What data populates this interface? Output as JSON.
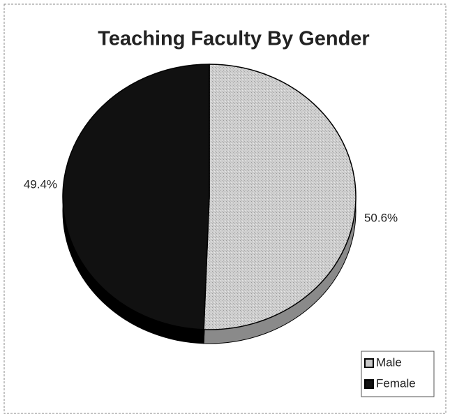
{
  "chart_data": {
    "type": "pie",
    "title": "Teaching Faculty By Gender",
    "categories": [
      "Male",
      "Female"
    ],
    "values": [
      50.6,
      49.4
    ],
    "value_labels": [
      "50.6%",
      "49.4%"
    ],
    "colors": [
      "#c9c9c9",
      "#111111"
    ],
    "legend": "bottom-right"
  }
}
